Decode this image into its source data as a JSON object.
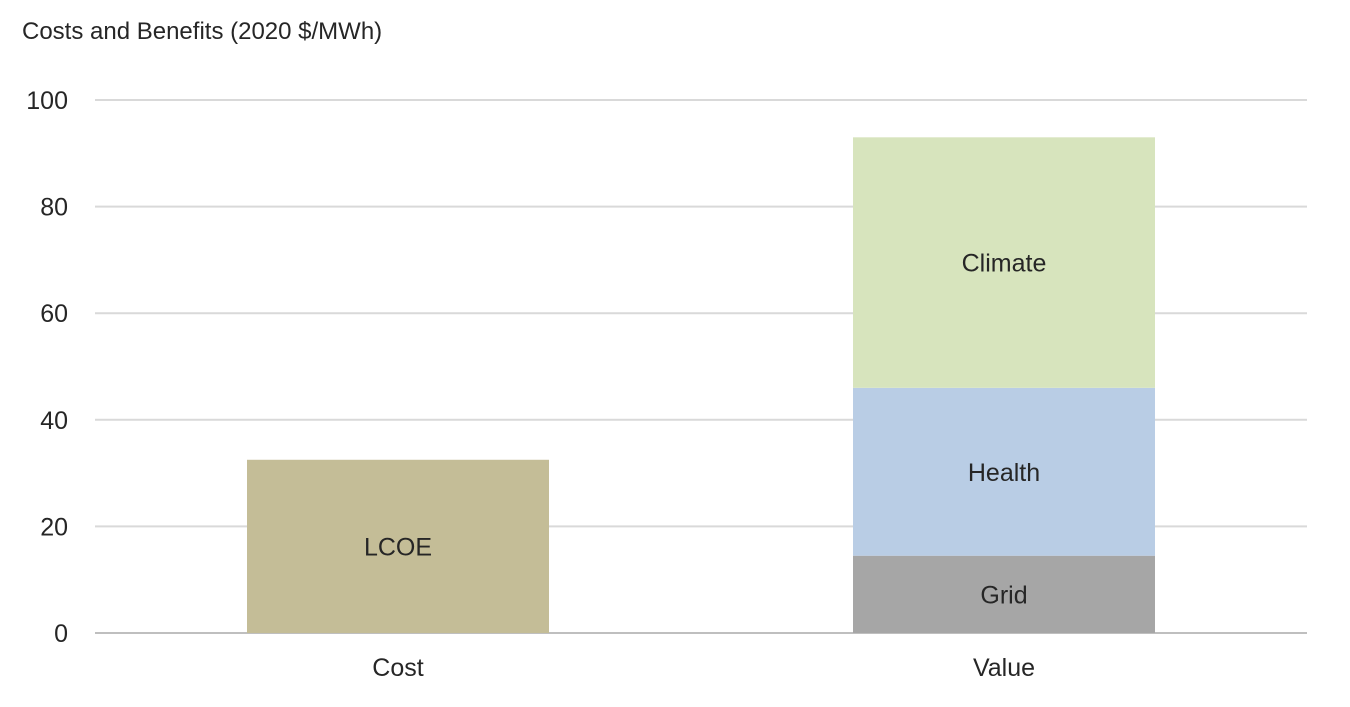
{
  "chart_data": {
    "type": "bar",
    "stacked": true,
    "ylabel": "Costs and Benefits (2020 $/MWh)",
    "ylim": [
      0,
      100
    ],
    "yticks": [
      0,
      20,
      40,
      60,
      80,
      100
    ],
    "grid": true,
    "categories": [
      "Cost",
      "Value"
    ],
    "series": [
      {
        "name": "LCOE",
        "color": "#c4bd97",
        "values": [
          32.5,
          0
        ]
      },
      {
        "name": "Grid",
        "color": "#a6a6a6",
        "values": [
          0,
          14.5
        ]
      },
      {
        "name": "Health",
        "color": "#b9cde5",
        "values": [
          0,
          31.5
        ]
      },
      {
        "name": "Climate",
        "color": "#d7e4bd",
        "values": [
          0,
          47
        ]
      }
    ],
    "legend": "none (series labels drawn inside bars)"
  }
}
